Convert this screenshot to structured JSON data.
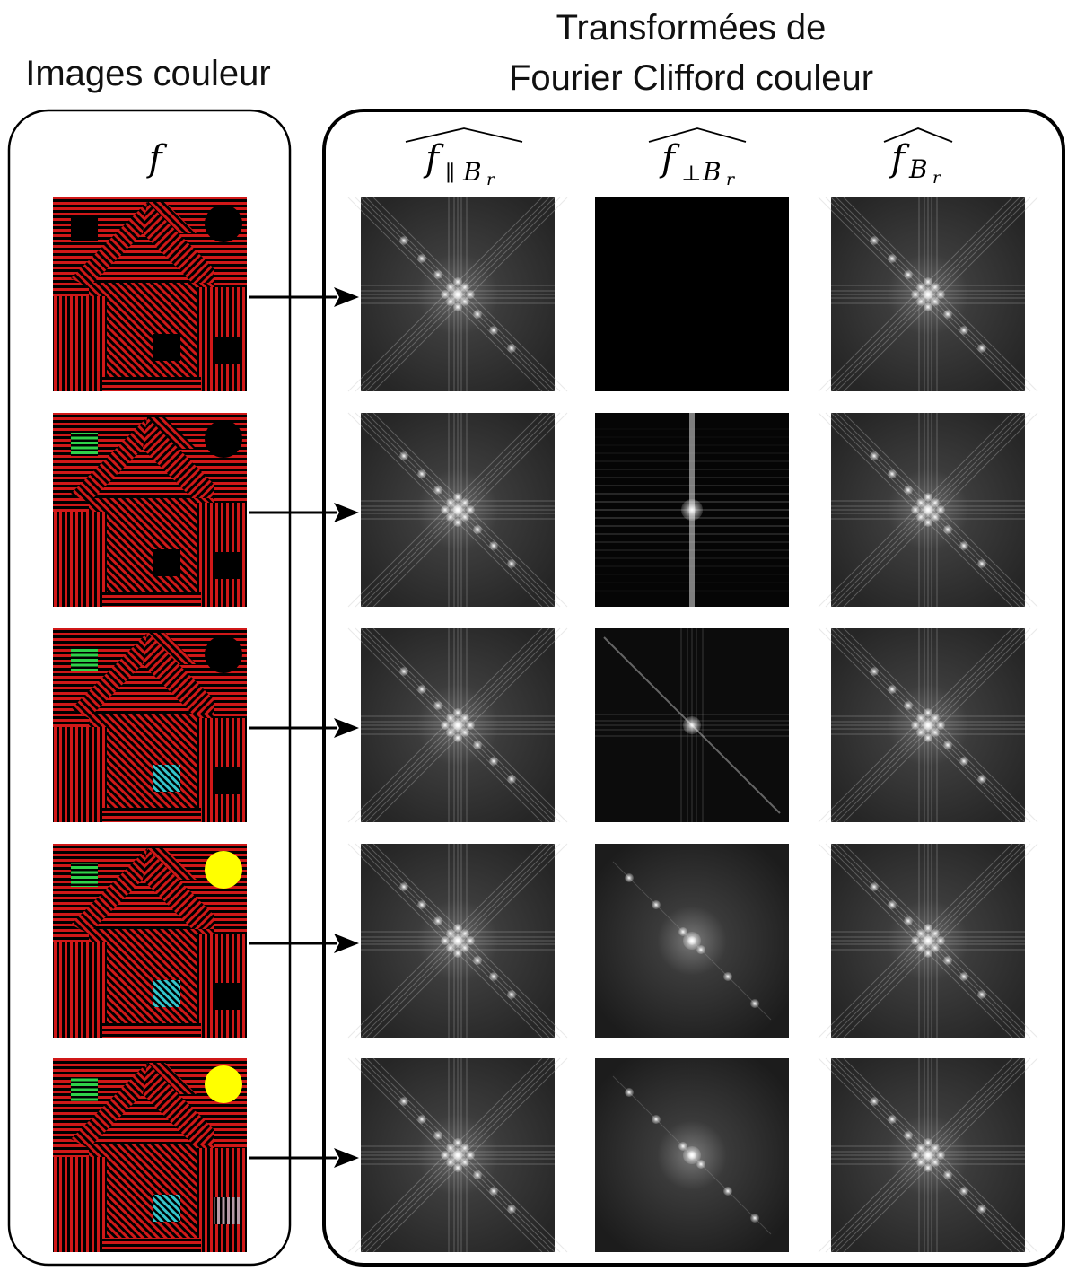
{
  "headings": {
    "left": "Images couleur",
    "right_line1": "Transformées de",
    "right_line2": "Fourier Clifford couleur"
  },
  "column_labels": {
    "input": {
      "base": "f"
    },
    "parallel": {
      "base": "f",
      "sub_symbol": "∥",
      "sub_var": "B",
      "sub_sub": "r"
    },
    "perpendicular": {
      "base": "f",
      "sub_symbol": "⊥",
      "sub_var": "B",
      "sub_sub": "r"
    },
    "full": {
      "base": "f",
      "sub_var": "B",
      "sub_sub": "r"
    }
  },
  "colors": {
    "background_red": "#d01818",
    "stripe_black": "#000000",
    "window_green": "#2fd24a",
    "window_cyan": "#33c6cc",
    "sun_yellow": "#ffff00",
    "door_lilac": "#b59aa6"
  },
  "rows": [
    {
      "window_color": "black",
      "sun_color": "black",
      "box_color": "black",
      "door_color": "black",
      "perp_spectrum": "black"
    },
    {
      "window_color": "green",
      "sun_color": "black",
      "box_color": "black",
      "door_color": "black",
      "perp_spectrum": "cross"
    },
    {
      "window_color": "green",
      "sun_color": "black",
      "box_color": "cyan",
      "door_color": "black",
      "perp_spectrum": "diagonal"
    },
    {
      "window_color": "green",
      "sun_color": "yellow",
      "box_color": "cyan",
      "door_color": "black",
      "perp_spectrum": "radial"
    },
    {
      "window_color": "green",
      "sun_color": "yellow",
      "box_color": "cyan",
      "door_color": "lilac",
      "perp_spectrum": "radial"
    }
  ]
}
